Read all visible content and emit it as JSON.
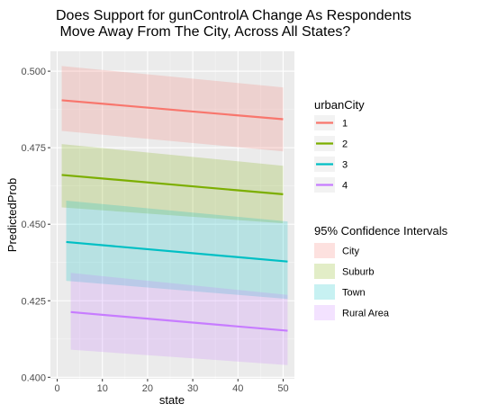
{
  "chart_data": {
    "type": "line",
    "title_lines": [
      "Does Support for gunControlA Change As Respondents",
      " Move Away From The City, Across All States?"
    ],
    "xlabel": "state",
    "ylabel": "PredictedProb",
    "xlim": [
      -1.5,
      52.5
    ],
    "ylim": [
      0.3995,
      0.5065
    ],
    "x_ticks": [
      0,
      10,
      20,
      30,
      40,
      50
    ],
    "y_ticks": [
      0.4,
      0.425,
      0.45,
      0.475,
      0.5
    ],
    "y_tick_labels": [
      "0.400",
      "0.425",
      "0.450",
      "0.475",
      "0.500"
    ],
    "grid": true,
    "legend_position": "right",
    "line_legend_title": "urbanCity",
    "ci_legend_title": "95% Confidence Intervals",
    "series": [
      {
        "name": "1",
        "ci_label": "City",
        "color": "#F8766D",
        "x": [
          1,
          50
        ],
        "y": [
          0.4905,
          0.4843
        ],
        "lower": [
          0.4805,
          0.4738
        ],
        "upper": [
          0.5017,
          0.4947
        ]
      },
      {
        "name": "2",
        "ci_label": "Suburb",
        "color": "#7CAE00",
        "x": [
          1,
          50
        ],
        "y": [
          0.4661,
          0.4598
        ],
        "lower": [
          0.4555,
          0.4503
        ],
        "upper": [
          0.4762,
          0.4691
        ]
      },
      {
        "name": "3",
        "ci_label": "Town",
        "color": "#00BFC4",
        "x": [
          2,
          51
        ],
        "y": [
          0.4442,
          0.4378
        ],
        "lower": [
          0.4315,
          0.4256
        ],
        "upper": [
          0.4577,
          0.4509
        ]
      },
      {
        "name": "4",
        "ci_label": "Rural Area",
        "color": "#C77CFF",
        "x": [
          3,
          51
        ],
        "y": [
          0.4213,
          0.4152
        ],
        "lower": [
          0.409,
          0.404
        ],
        "upper": [
          0.4341,
          0.4269
        ]
      }
    ]
  }
}
